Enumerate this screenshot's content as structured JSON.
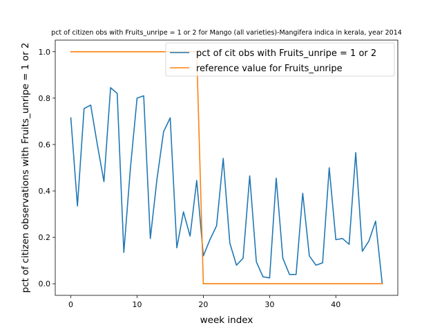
{
  "chart_data": {
    "type": "line",
    "title": "pct of citizen obs with Fruits_unripe = 1 or 2 for Mango (all varieties)-Mangifera indica in kerala, year 2014",
    "xlabel": "week index",
    "ylabel": "pct of citizen observations with Fruits_unripe = 1 or 2",
    "xlim": [
      -2.35,
      49.35
    ],
    "ylim": [
      -0.05,
      1.05
    ],
    "xticks": [
      0,
      10,
      20,
      30,
      40
    ],
    "xtick_labels": [
      "0",
      "10",
      "20",
      "30",
      "40"
    ],
    "yticks": [
      0.0,
      0.2,
      0.4,
      0.6,
      0.8,
      1.0
    ],
    "ytick_labels": [
      "0.0",
      "0.2",
      "0.4",
      "0.6",
      "0.8",
      "1.0"
    ],
    "grid": false,
    "legend_position": "top-right",
    "series": [
      {
        "name": "pct of cit obs with Fruits_unripe = 1 or 2",
        "color": "#1f77b4",
        "x": [
          0,
          1,
          2,
          3,
          4,
          5,
          6,
          7,
          8,
          9,
          10,
          11,
          12,
          13,
          14,
          15,
          16,
          17,
          18,
          19,
          20,
          21,
          22,
          23,
          24,
          25,
          26,
          27,
          28,
          29,
          30,
          31,
          32,
          33,
          34,
          35,
          36,
          37,
          38,
          39,
          40,
          41,
          42,
          43,
          44,
          45,
          46,
          47
        ],
        "y": [
          0.715,
          0.335,
          0.755,
          0.77,
          0.6,
          0.44,
          0.845,
          0.82,
          0.135,
          0.5,
          0.8,
          0.81,
          0.195,
          0.45,
          0.655,
          0.715,
          0.155,
          0.31,
          0.205,
          0.445,
          0.12,
          0.19,
          0.25,
          0.54,
          0.175,
          0.08,
          0.11,
          0.465,
          0.095,
          0.03,
          0.025,
          0.455,
          0.11,
          0.04,
          0.04,
          0.39,
          0.12,
          0.08,
          0.09,
          0.5,
          0.19,
          0.195,
          0.17,
          0.565,
          0.14,
          0.185,
          0.27,
          0.0
        ]
      },
      {
        "name": "reference value for Fruits_unripe",
        "color": "#ff7f0e",
        "x": [
          0,
          1,
          2,
          3,
          4,
          5,
          6,
          7,
          8,
          9,
          10,
          11,
          12,
          13,
          14,
          15,
          16,
          17,
          18,
          19,
          20,
          21,
          22,
          23,
          24,
          25,
          26,
          27,
          28,
          29,
          30,
          31,
          32,
          33,
          34,
          35,
          36,
          37,
          38,
          39,
          40,
          41,
          42,
          43,
          44,
          45,
          46,
          47
        ],
        "y": [
          1,
          1,
          1,
          1,
          1,
          1,
          1,
          1,
          1,
          1,
          1,
          1,
          1,
          1,
          1,
          1,
          1,
          1,
          1,
          1,
          0,
          0,
          0,
          0,
          0,
          0,
          0,
          0,
          0,
          0,
          0,
          0,
          0,
          0,
          0,
          0,
          0,
          0,
          0,
          0,
          0,
          0,
          0,
          0,
          0,
          0,
          0,
          0
        ]
      }
    ]
  }
}
